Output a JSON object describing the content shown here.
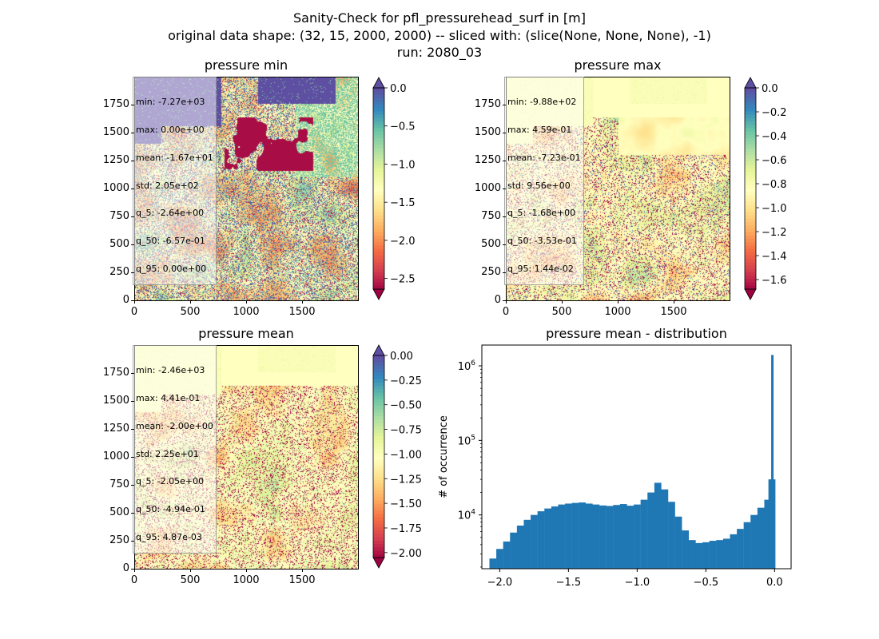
{
  "figure": {
    "title_line1": "Sanity-Check for pfl_pressurehead_surf in [m]",
    "title_line2": "original data shape: (32, 15, 2000, 2000) -- sliced with: (slice(None, None, None), -1)",
    "title_line3": "run: 2080_03"
  },
  "map_axis": {
    "x_ticks": [
      "0",
      "500",
      "1000",
      "1500"
    ],
    "y_ticks": [
      "0",
      "250",
      "500",
      "750",
      "1000",
      "1250",
      "1500",
      "1750"
    ]
  },
  "panels": [
    {
      "title": "pressure min",
      "stats": [
        "min: -7.27e+03",
        "max: 0.00e+00",
        "mean: -1.67e+01",
        "std: 2.05e+02",
        "q_5: -2.64e+00",
        "q_50: -6.57e-01",
        "q_95: 0.00e+00"
      ],
      "colorbar": {
        "vmin": -2.64,
        "vmax": 0.0,
        "ticks": [
          "0.0",
          "−0.5",
          "−1.0",
          "−1.5",
          "−2.0",
          "−2.5"
        ],
        "extend_top_color": "#5e4fa2",
        "extend_bottom_color": "#9e0142"
      }
    },
    {
      "title": "pressure max",
      "stats": [
        "min: -9.88e+02",
        "max: 4.59e-01",
        "mean: -7.23e-01",
        "std: 9.56e+00",
        "q_5: -1.68e+00",
        "q_50: -3.53e-01",
        "q_95: 1.44e-02"
      ],
      "colorbar": {
        "vmin": -1.68,
        "vmax": 0.0,
        "ticks": [
          "0.0",
          "−0.2",
          "−0.4",
          "−0.6",
          "−0.8",
          "−1.0",
          "−1.2",
          "−1.4",
          "−1.6"
        ],
        "extend_top_color": "#5e4fa2",
        "extend_bottom_color": "#9e0142"
      }
    },
    {
      "title": "pressure mean",
      "stats": [
        "min: -2.46e+03",
        "max: 4.41e-01",
        "mean: -2.00e+00",
        "std: 2.25e+01",
        "q_5: -2.05e+00",
        "q_50: -4.94e-01",
        "q_95: 4.87e-03"
      ],
      "colorbar": {
        "vmin": -2.05,
        "vmax": 0.0,
        "ticks": [
          "0.00",
          "−0.25",
          "−0.50",
          "−0.75",
          "−1.00",
          "−1.25",
          "−1.50",
          "−1.75",
          "−2.00"
        ],
        "extend_top_color": "#5e4fa2",
        "extend_bottom_color": "#9e0142"
      }
    }
  ],
  "chart_data": {
    "type": "bar",
    "title": "pressure mean - distribution",
    "xlabel": "",
    "ylabel": "# of occurrence",
    "yscale": "log",
    "xlim": [
      -2.13,
      0.12
    ],
    "ylim": [
      1900,
      1900000
    ],
    "x_tick_labels": [
      "−2.0",
      "−1.5",
      "−1.0",
      "−0.5",
      "0.0"
    ],
    "y_tick_labels": [
      "10^4",
      "10^5",
      "10^6"
    ],
    "bar_color": "#1f77b4",
    "bins": [
      {
        "x": -2.05,
        "y": 2600
      },
      {
        "x": -2.0,
        "y": 3500
      },
      {
        "x": -1.95,
        "y": 4400
      },
      {
        "x": -1.9,
        "y": 5800
      },
      {
        "x": -1.85,
        "y": 7200
      },
      {
        "x": -1.8,
        "y": 8600
      },
      {
        "x": -1.75,
        "y": 10000
      },
      {
        "x": -1.7,
        "y": 11200
      },
      {
        "x": -1.65,
        "y": 12200
      },
      {
        "x": -1.6,
        "y": 13000
      },
      {
        "x": -1.55,
        "y": 13800
      },
      {
        "x": -1.5,
        "y": 14200
      },
      {
        "x": -1.45,
        "y": 14500
      },
      {
        "x": -1.4,
        "y": 14700
      },
      {
        "x": -1.35,
        "y": 14200
      },
      {
        "x": -1.3,
        "y": 13800
      },
      {
        "x": -1.25,
        "y": 13400
      },
      {
        "x": -1.2,
        "y": 13200
      },
      {
        "x": -1.15,
        "y": 13600
      },
      {
        "x": -1.1,
        "y": 14000
      },
      {
        "x": -1.05,
        "y": 13300
      },
      {
        "x": -1.0,
        "y": 13800
      },
      {
        "x": -0.95,
        "y": 16000
      },
      {
        "x": -0.9,
        "y": 20000
      },
      {
        "x": -0.85,
        "y": 27000
      },
      {
        "x": -0.8,
        "y": 22000
      },
      {
        "x": -0.75,
        "y": 15000
      },
      {
        "x": -0.7,
        "y": 9500
      },
      {
        "x": -0.65,
        "y": 6200
      },
      {
        "x": -0.6,
        "y": 4600
      },
      {
        "x": -0.55,
        "y": 4200
      },
      {
        "x": -0.5,
        "y": 4300
      },
      {
        "x": -0.45,
        "y": 4500
      },
      {
        "x": -0.4,
        "y": 4600
      },
      {
        "x": -0.35,
        "y": 4800
      },
      {
        "x": -0.3,
        "y": 5500
      },
      {
        "x": -0.25,
        "y": 6500
      },
      {
        "x": -0.2,
        "y": 8000
      },
      {
        "x": -0.15,
        "y": 10000
      },
      {
        "x": -0.1,
        "y": 12500
      },
      {
        "x": -0.05,
        "y": 16000
      },
      {
        "x": -0.02,
        "y": 30000
      },
      {
        "x": 0.0,
        "y": 1400000
      }
    ]
  }
}
